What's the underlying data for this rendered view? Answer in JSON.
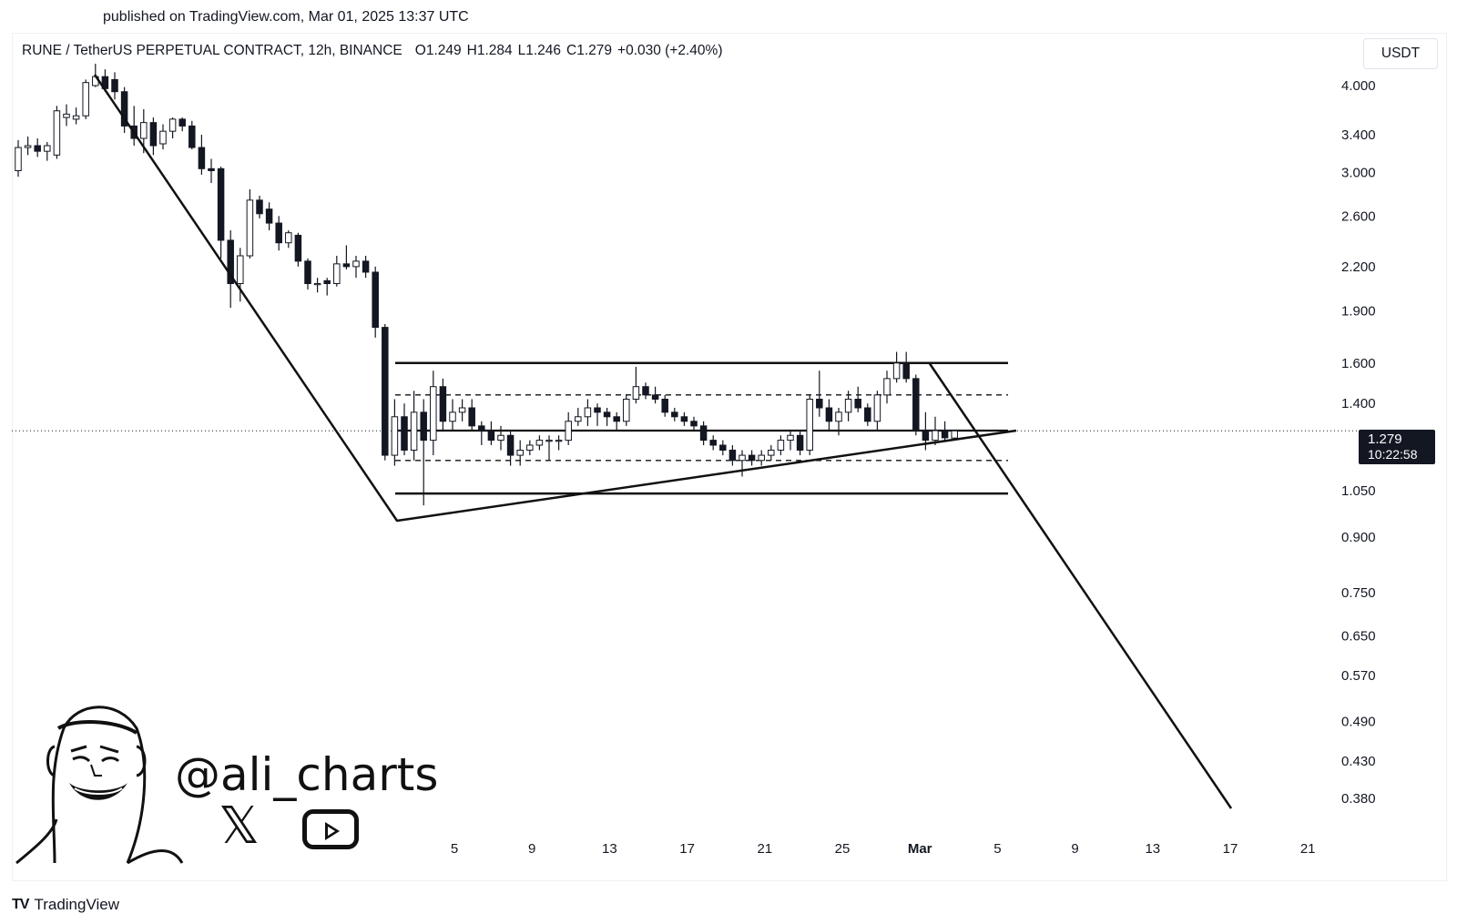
{
  "header": {
    "published": "published on TradingView.com, Mar 01, 2025 13:37 UTC"
  },
  "legend": {
    "symbol": "RUNE / TetherUS PERPETUAL CONTRACT, 12h, BINANCE",
    "open": "O1.249",
    "high": "H1.284",
    "low": "L1.246",
    "close": "C1.279",
    "change": "+0.030 (+2.40%)"
  },
  "currency": "USDT",
  "last_price": {
    "price": "1.279",
    "countdown": "10:22:58"
  },
  "watermark": {
    "handle": "@ali_charts",
    "x_icon": "x-logo-icon",
    "youtube_icon": "youtube-play-icon"
  },
  "footer": {
    "brand": "TradingView",
    "logo_icon": "tradingview-logo-icon"
  },
  "chart_data": {
    "type": "candlestick",
    "y_scale": "log",
    "ylim": [
      0.35,
      4.3
    ],
    "y_ticks": [
      "4.000",
      "3.400",
      "3.000",
      "2.600",
      "2.200",
      "1.900",
      "1.600",
      "1.400",
      "1.050",
      "0.900",
      "0.750",
      "0.650",
      "0.570",
      "0.490",
      "0.430",
      "0.380"
    ],
    "x_ticks": [
      "5",
      "9",
      "13",
      "17",
      "21",
      "25",
      "Mar",
      "5",
      "9",
      "13",
      "17",
      "21"
    ],
    "grid": false,
    "candles": [
      {
        "o": 3.02,
        "h": 3.34,
        "l": 2.96,
        "c": 3.26
      },
      {
        "o": 3.26,
        "h": 3.38,
        "l": 3.18,
        "c": 3.28
      },
      {
        "o": 3.28,
        "h": 3.36,
        "l": 3.16,
        "c": 3.22
      },
      {
        "o": 3.22,
        "h": 3.32,
        "l": 3.12,
        "c": 3.28
      },
      {
        "o": 3.18,
        "h": 3.74,
        "l": 3.14,
        "c": 3.68
      },
      {
        "o": 3.6,
        "h": 3.76,
        "l": 3.5,
        "c": 3.64
      },
      {
        "o": 3.58,
        "h": 3.72,
        "l": 3.52,
        "c": 3.62
      },
      {
        "o": 3.62,
        "h": 4.08,
        "l": 3.58,
        "c": 4.04
      },
      {
        "o": 4.0,
        "h": 4.3,
        "l": 3.98,
        "c": 4.12
      },
      {
        "o": 4.12,
        "h": 4.22,
        "l": 3.92,
        "c": 3.96
      },
      {
        "o": 4.08,
        "h": 4.18,
        "l": 3.82,
        "c": 3.92
      },
      {
        "o": 3.92,
        "h": 3.98,
        "l": 3.42,
        "c": 3.5
      },
      {
        "o": 3.5,
        "h": 3.74,
        "l": 3.28,
        "c": 3.36
      },
      {
        "o": 3.36,
        "h": 3.7,
        "l": 3.2,
        "c": 3.54
      },
      {
        "o": 3.54,
        "h": 3.6,
        "l": 3.18,
        "c": 3.28
      },
      {
        "o": 3.3,
        "h": 3.52,
        "l": 3.24,
        "c": 3.44
      },
      {
        "o": 3.44,
        "h": 3.6,
        "l": 3.36,
        "c": 3.58
      },
      {
        "o": 3.58,
        "h": 3.6,
        "l": 3.44,
        "c": 3.5
      },
      {
        "o": 3.5,
        "h": 3.56,
        "l": 3.24,
        "c": 3.26
      },
      {
        "o": 3.26,
        "h": 3.4,
        "l": 2.98,
        "c": 3.04
      },
      {
        "o": 3.04,
        "h": 3.14,
        "l": 2.9,
        "c": 3.02
      },
      {
        "o": 3.04,
        "h": 3.06,
        "l": 2.26,
        "c": 2.4
      },
      {
        "o": 2.4,
        "h": 2.48,
        "l": 1.92,
        "c": 2.08
      },
      {
        "o": 2.08,
        "h": 2.34,
        "l": 1.96,
        "c": 2.28
      },
      {
        "o": 2.28,
        "h": 2.84,
        "l": 2.26,
        "c": 2.74
      },
      {
        "o": 2.74,
        "h": 2.78,
        "l": 2.58,
        "c": 2.62
      },
      {
        "o": 2.66,
        "h": 2.72,
        "l": 2.48,
        "c": 2.54
      },
      {
        "o": 2.54,
        "h": 2.6,
        "l": 2.32,
        "c": 2.38
      },
      {
        "o": 2.38,
        "h": 2.48,
        "l": 2.34,
        "c": 2.46
      },
      {
        "o": 2.44,
        "h": 2.46,
        "l": 2.2,
        "c": 2.24
      },
      {
        "o": 2.24,
        "h": 2.26,
        "l": 2.04,
        "c": 2.08
      },
      {
        "o": 2.08,
        "h": 2.12,
        "l": 2.02,
        "c": 2.08
      },
      {
        "o": 2.1,
        "h": 2.12,
        "l": 2.0,
        "c": 2.08
      },
      {
        "o": 2.08,
        "h": 2.28,
        "l": 2.06,
        "c": 2.22
      },
      {
        "o": 2.22,
        "h": 2.36,
        "l": 2.18,
        "c": 2.2
      },
      {
        "o": 2.2,
        "h": 2.28,
        "l": 2.12,
        "c": 2.24
      },
      {
        "o": 2.24,
        "h": 2.28,
        "l": 2.12,
        "c": 2.16
      },
      {
        "o": 2.16,
        "h": 2.2,
        "l": 1.74,
        "c": 1.8
      },
      {
        "o": 1.8,
        "h": 1.82,
        "l": 1.16,
        "c": 1.18
      },
      {
        "o": 1.18,
        "h": 1.42,
        "l": 1.14,
        "c": 1.34
      },
      {
        "o": 1.34,
        "h": 1.4,
        "l": 1.18,
        "c": 1.2
      },
      {
        "o": 1.2,
        "h": 1.46,
        "l": 1.16,
        "c": 1.36
      },
      {
        "o": 1.36,
        "h": 1.42,
        "l": 1.0,
        "c": 1.24
      },
      {
        "o": 1.24,
        "h": 1.56,
        "l": 1.18,
        "c": 1.48
      },
      {
        "o": 1.48,
        "h": 1.52,
        "l": 1.28,
        "c": 1.32
      },
      {
        "o": 1.32,
        "h": 1.42,
        "l": 1.28,
        "c": 1.36
      },
      {
        "o": 1.36,
        "h": 1.42,
        "l": 1.32,
        "c": 1.38
      },
      {
        "o": 1.38,
        "h": 1.42,
        "l": 1.28,
        "c": 1.3
      },
      {
        "o": 1.3,
        "h": 1.32,
        "l": 1.22,
        "c": 1.28
      },
      {
        "o": 1.28,
        "h": 1.32,
        "l": 1.22,
        "c": 1.24
      },
      {
        "o": 1.24,
        "h": 1.3,
        "l": 1.2,
        "c": 1.26
      },
      {
        "o": 1.26,
        "h": 1.28,
        "l": 1.14,
        "c": 1.18
      },
      {
        "o": 1.18,
        "h": 1.24,
        "l": 1.14,
        "c": 1.2
      },
      {
        "o": 1.2,
        "h": 1.24,
        "l": 1.18,
        "c": 1.22
      },
      {
        "o": 1.22,
        "h": 1.26,
        "l": 1.2,
        "c": 1.24
      },
      {
        "o": 1.24,
        "h": 1.26,
        "l": 1.16,
        "c": 1.24
      },
      {
        "o": 1.24,
        "h": 1.26,
        "l": 1.2,
        "c": 1.24
      },
      {
        "o": 1.24,
        "h": 1.36,
        "l": 1.22,
        "c": 1.32
      },
      {
        "o": 1.32,
        "h": 1.38,
        "l": 1.3,
        "c": 1.34
      },
      {
        "o": 1.34,
        "h": 1.42,
        "l": 1.3,
        "c": 1.38
      },
      {
        "o": 1.38,
        "h": 1.4,
        "l": 1.3,
        "c": 1.36
      },
      {
        "o": 1.36,
        "h": 1.38,
        "l": 1.3,
        "c": 1.34
      },
      {
        "o": 1.34,
        "h": 1.36,
        "l": 1.28,
        "c": 1.32
      },
      {
        "o": 1.32,
        "h": 1.44,
        "l": 1.3,
        "c": 1.42
      },
      {
        "o": 1.42,
        "h": 1.58,
        "l": 1.4,
        "c": 1.48
      },
      {
        "o": 1.48,
        "h": 1.5,
        "l": 1.42,
        "c": 1.44
      },
      {
        "o": 1.44,
        "h": 1.48,
        "l": 1.4,
        "c": 1.42
      },
      {
        "o": 1.42,
        "h": 1.44,
        "l": 1.34,
        "c": 1.36
      },
      {
        "o": 1.36,
        "h": 1.38,
        "l": 1.32,
        "c": 1.34
      },
      {
        "o": 1.34,
        "h": 1.36,
        "l": 1.3,
        "c": 1.32
      },
      {
        "o": 1.32,
        "h": 1.34,
        "l": 1.28,
        "c": 1.3
      },
      {
        "o": 1.3,
        "h": 1.32,
        "l": 1.22,
        "c": 1.24
      },
      {
        "o": 1.24,
        "h": 1.26,
        "l": 1.2,
        "c": 1.22
      },
      {
        "o": 1.22,
        "h": 1.24,
        "l": 1.18,
        "c": 1.2
      },
      {
        "o": 1.2,
        "h": 1.22,
        "l": 1.14,
        "c": 1.16
      },
      {
        "o": 1.16,
        "h": 1.2,
        "l": 1.1,
        "c": 1.18
      },
      {
        "o": 1.18,
        "h": 1.2,
        "l": 1.14,
        "c": 1.16
      },
      {
        "o": 1.16,
        "h": 1.2,
        "l": 1.14,
        "c": 1.18
      },
      {
        "o": 1.18,
        "h": 1.22,
        "l": 1.16,
        "c": 1.2
      },
      {
        "o": 1.2,
        "h": 1.26,
        "l": 1.18,
        "c": 1.24
      },
      {
        "o": 1.24,
        "h": 1.28,
        "l": 1.2,
        "c": 1.26
      },
      {
        "o": 1.26,
        "h": 1.28,
        "l": 1.18,
        "c": 1.2
      },
      {
        "o": 1.2,
        "h": 1.44,
        "l": 1.18,
        "c": 1.42
      },
      {
        "o": 1.42,
        "h": 1.56,
        "l": 1.34,
        "c": 1.38
      },
      {
        "o": 1.38,
        "h": 1.42,
        "l": 1.28,
        "c": 1.32
      },
      {
        "o": 1.32,
        "h": 1.38,
        "l": 1.26,
        "c": 1.36
      },
      {
        "o": 1.36,
        "h": 1.46,
        "l": 1.32,
        "c": 1.42
      },
      {
        "o": 1.42,
        "h": 1.48,
        "l": 1.36,
        "c": 1.38
      },
      {
        "o": 1.38,
        "h": 1.4,
        "l": 1.3,
        "c": 1.32
      },
      {
        "o": 1.32,
        "h": 1.46,
        "l": 1.28,
        "c": 1.44
      },
      {
        "o": 1.44,
        "h": 1.56,
        "l": 1.4,
        "c": 1.52
      },
      {
        "o": 1.52,
        "h": 1.66,
        "l": 1.5,
        "c": 1.6
      },
      {
        "o": 1.6,
        "h": 1.66,
        "l": 1.5,
        "c": 1.52
      },
      {
        "o": 1.52,
        "h": 1.54,
        "l": 1.26,
        "c": 1.28
      },
      {
        "o": 1.28,
        "h": 1.36,
        "l": 1.2,
        "c": 1.24
      },
      {
        "o": 1.24,
        "h": 1.34,
        "l": 1.22,
        "c": 1.28
      },
      {
        "o": 1.28,
        "h": 1.32,
        "l": 1.24,
        "c": 1.25
      },
      {
        "o": 1.249,
        "h": 1.284,
        "l": 1.246,
        "c": 1.279
      }
    ],
    "levels": {
      "range_top": 1.6,
      "upper_dashed": 1.44,
      "mid": 1.28,
      "lower_dashed": 1.16,
      "range_bottom": 1.04,
      "last_price": 1.279
    }
  }
}
